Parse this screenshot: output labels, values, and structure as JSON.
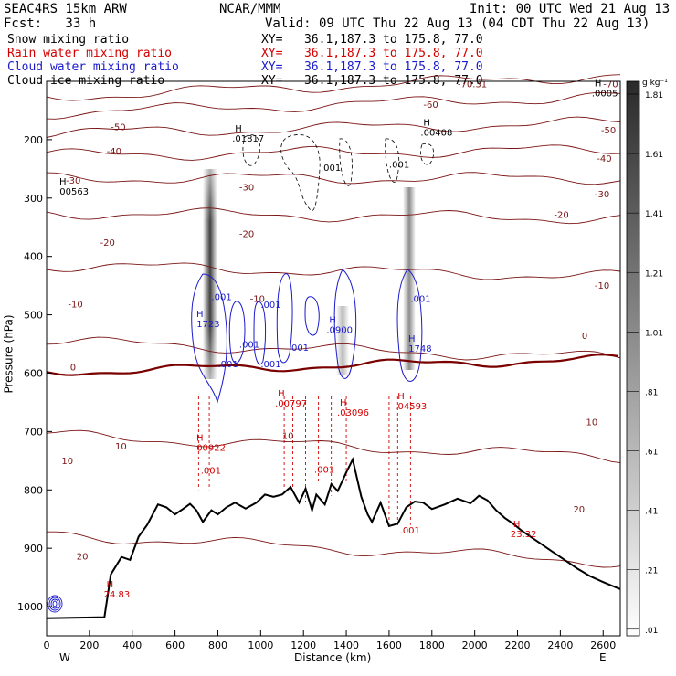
{
  "header": {
    "model": "SEAC4RS 15km ARW",
    "center": "NCAR/MMM",
    "init": "Init: 00 UTC Wed 21 Aug 13",
    "fcst": "Fcst:   33 h",
    "valid": "Valid: 09 UTC Thu 22 Aug 13 (04 CDT Thu 22 Aug 13)",
    "fields": [
      {
        "name": "Snow mixing ratio",
        "xy": "XY=   36.1,187.3 to 175.8, 77.0",
        "color": "#000000"
      },
      {
        "name": "Rain water mixing ratio",
        "xy": "XY=   36.1,187.3 to 175.8, 77.0",
        "color": "#d40000"
      },
      {
        "name": "Cloud water mixing ratio",
        "xy": "XY=   36.1,187.3 to 175.8, 77.0",
        "color": "#1a1acc"
      },
      {
        "name": "Cloud ice mixing ratio",
        "xy": "XY=   36.1,187.3 to 175.8, 77.0",
        "color": "#000000"
      }
    ]
  },
  "colorbar": {
    "unit": "g kg⁻¹",
    "labels": [
      "1.81",
      "1.61",
      "1.41",
      "1.21",
      "1.01",
      ".81",
      ".61",
      ".41",
      ".21",
      ".01"
    ]
  },
  "chart_data": {
    "type": "contour",
    "xlabel": "Distance (km)",
    "ylabel": "Pressure (hPa)",
    "xlim": [
      0,
      2680
    ],
    "ylim": [
      1050,
      100
    ],
    "x_ticks": [
      "0",
      "200",
      "400",
      "600",
      "800",
      "1000",
      "1200",
      "1400",
      "1600",
      "1800",
      "2000",
      "2200",
      "2400",
      "2600"
    ],
    "y_ticks": [
      "200",
      "300",
      "400",
      "500",
      "600",
      "700",
      "800",
      "900",
      "1000"
    ],
    "x_end_labels": {
      "left": "W",
      "right": "E"
    },
    "temperature_contours": [
      {
        "label": "-70",
        "p": 108
      },
      {
        "label": "-60",
        "p": 140
      },
      {
        "label": "-50",
        "p": 180
      },
      {
        "label": "-40",
        "p": 222
      },
      {
        "label": "-30",
        "p": 266
      },
      {
        "label": "-20",
        "p": 330
      },
      {
        "label": "-10",
        "p": 425
      },
      {
        "label": "0",
        "p": 560
      },
      {
        "label": "10",
        "p": 725
      },
      {
        "label": "20",
        "p": 900
      }
    ],
    "temperature_labels": [
      {
        "text": "-70.31",
        "x": 1920,
        "p": 110
      },
      {
        "text": "-70",
        "x": 2600,
        "p": 110
      },
      {
        "text": "-60",
        "x": 1760,
        "p": 145
      },
      {
        "text": "-50",
        "x": 300,
        "p": 184
      },
      {
        "text": "-50",
        "x": 2590,
        "p": 189
      },
      {
        "text": "-40",
        "x": 280,
        "p": 225
      },
      {
        "text": "-40",
        "x": 2570,
        "p": 238
      },
      {
        "text": "-30",
        "x": 90,
        "p": 275
      },
      {
        "text": "-30",
        "x": 900,
        "p": 287
      },
      {
        "text": "-30",
        "x": 2560,
        "p": 299
      },
      {
        "text": "-20",
        "x": 250,
        "p": 382
      },
      {
        "text": "-20",
        "x": 900,
        "p": 367
      },
      {
        "text": "-20",
        "x": 2370,
        "p": 334
      },
      {
        "text": "-10",
        "x": 100,
        "p": 487
      },
      {
        "text": "-10",
        "x": 950,
        "p": 478
      },
      {
        "text": "-10",
        "x": 2560,
        "p": 455
      },
      {
        "text": "0",
        "x": 110,
        "p": 595
      },
      {
        "text": "0",
        "x": 2500,
        "p": 541
      },
      {
        "text": "10",
        "x": 70,
        "p": 756
      },
      {
        "text": "10",
        "x": 320,
        "p": 731
      },
      {
        "text": "10",
        "x": 1100,
        "p": 713
      },
      {
        "text": "10",
        "x": 2520,
        "p": 689
      },
      {
        "text": "20",
        "x": 140,
        "p": 919
      },
      {
        "text": "20",
        "x": 2460,
        "p": 839
      }
    ],
    "extrema_labels": [
      {
        "text": "H",
        "value": ".00563",
        "x": 60,
        "p": 294,
        "color": "#000000"
      },
      {
        "text": "H",
        "value": ".01817",
        "x": 880,
        "p": 203,
        "color": "#000000"
      },
      {
        "text": "H",
        "value": ".00408",
        "x": 1760,
        "p": 193,
        "color": "#000000"
      },
      {
        "text": "H",
        "value": ".0005",
        "x": 2560,
        "p": 126,
        "color": "#000000"
      },
      {
        "text": "H",
        "value": ".1723",
        "x": 700,
        "p": 521,
        "color": "#1a1acc"
      },
      {
        "text": "H",
        "value": ".0900",
        "x": 1320,
        "p": 531,
        "color": "#1a1acc"
      },
      {
        "text": "H",
        "value": ".1748",
        "x": 1690,
        "p": 563,
        "color": "#1a1acc"
      },
      {
        "text": "H",
        "value": ".00797",
        "x": 1080,
        "p": 657,
        "color": "#d40000"
      },
      {
        "text": "H",
        "value": ".03096",
        "x": 1370,
        "p": 673,
        "color": "#d40000"
      },
      {
        "text": "H",
        "value": ".04593",
        "x": 1640,
        "p": 662,
        "color": "#d40000"
      },
      {
        "text": "H",
        "value": ".00922",
        "x": 700,
        "p": 733,
        "color": "#d40000"
      },
      {
        "text": "H",
        "value": "23.32",
        "x": 2180,
        "p": 881,
        "color": "#d40000"
      },
      {
        "text": "H",
        "value": "24.83",
        "x": 280,
        "p": 984,
        "color": "#d40000"
      }
    ],
    "small_labels": [
      {
        "text": ".001",
        "x": 1280,
        "p": 253,
        "color": "#000000"
      },
      {
        "text": ".001",
        "x": 1600,
        "p": 248,
        "color": "#000000"
      },
      {
        "text": ".001",
        "x": 770,
        "p": 475,
        "color": "#1a1acc"
      },
      {
        "text": ".001",
        "x": 1000,
        "p": 488,
        "color": "#1a1acc"
      },
      {
        "text": ".001",
        "x": 1130,
        "p": 562,
        "color": "#1a1acc"
      },
      {
        "text": ".001",
        "x": 1700,
        "p": 478,
        "color": "#1a1acc"
      },
      {
        "text": ".001",
        "x": 900,
        "p": 556,
        "color": "#1a1acc"
      },
      {
        "text": ".001",
        "x": 800,
        "p": 590,
        "color": "#1a1acc"
      },
      {
        "text": ".001",
        "x": 1000,
        "p": 590,
        "color": "#1a1acc"
      },
      {
        "text": ".001",
        "x": 1250,
        "p": 771,
        "color": "#d40000"
      },
      {
        "text": ".001",
        "x": 720,
        "p": 772,
        "color": "#d40000"
      },
      {
        "text": ".001",
        "x": 1650,
        "p": 875,
        "color": "#d40000"
      }
    ],
    "terrain": [
      [
        0,
        1020
      ],
      [
        270,
        1018
      ],
      [
        300,
        945
      ],
      [
        350,
        915
      ],
      [
        390,
        920
      ],
      [
        430,
        880
      ],
      [
        470,
        860
      ],
      [
        520,
        825
      ],
      [
        560,
        830
      ],
      [
        600,
        842
      ],
      [
        640,
        832
      ],
      [
        670,
        824
      ],
      [
        700,
        835
      ],
      [
        730,
        855
      ],
      [
        770,
        835
      ],
      [
        800,
        842
      ],
      [
        840,
        830
      ],
      [
        880,
        822
      ],
      [
        930,
        832
      ],
      [
        980,
        822
      ],
      [
        1020,
        808
      ],
      [
        1060,
        812
      ],
      [
        1100,
        808
      ],
      [
        1140,
        795
      ],
      [
        1180,
        822
      ],
      [
        1210,
        798
      ],
      [
        1240,
        835
      ],
      [
        1260,
        808
      ],
      [
        1300,
        825
      ],
      [
        1330,
        790
      ],
      [
        1360,
        802
      ],
      [
        1400,
        770
      ],
      [
        1430,
        748
      ],
      [
        1470,
        812
      ],
      [
        1500,
        842
      ],
      [
        1520,
        855
      ],
      [
        1560,
        822
      ],
      [
        1600,
        862
      ],
      [
        1640,
        858
      ],
      [
        1680,
        830
      ],
      [
        1720,
        820
      ],
      [
        1760,
        822
      ],
      [
        1800,
        833
      ],
      [
        1860,
        825
      ],
      [
        1920,
        815
      ],
      [
        1980,
        823
      ],
      [
        2020,
        810
      ],
      [
        2060,
        818
      ],
      [
        2100,
        835
      ],
      [
        2140,
        848
      ],
      [
        2180,
        858
      ],
      [
        2220,
        870
      ],
      [
        2260,
        880
      ],
      [
        2300,
        890
      ],
      [
        2360,
        905
      ],
      [
        2420,
        920
      ],
      [
        2480,
        935
      ],
      [
        2540,
        948
      ],
      [
        2600,
        958
      ],
      [
        2680,
        970
      ]
    ],
    "colorbar_range": [
      0.01,
      1.81
    ]
  }
}
